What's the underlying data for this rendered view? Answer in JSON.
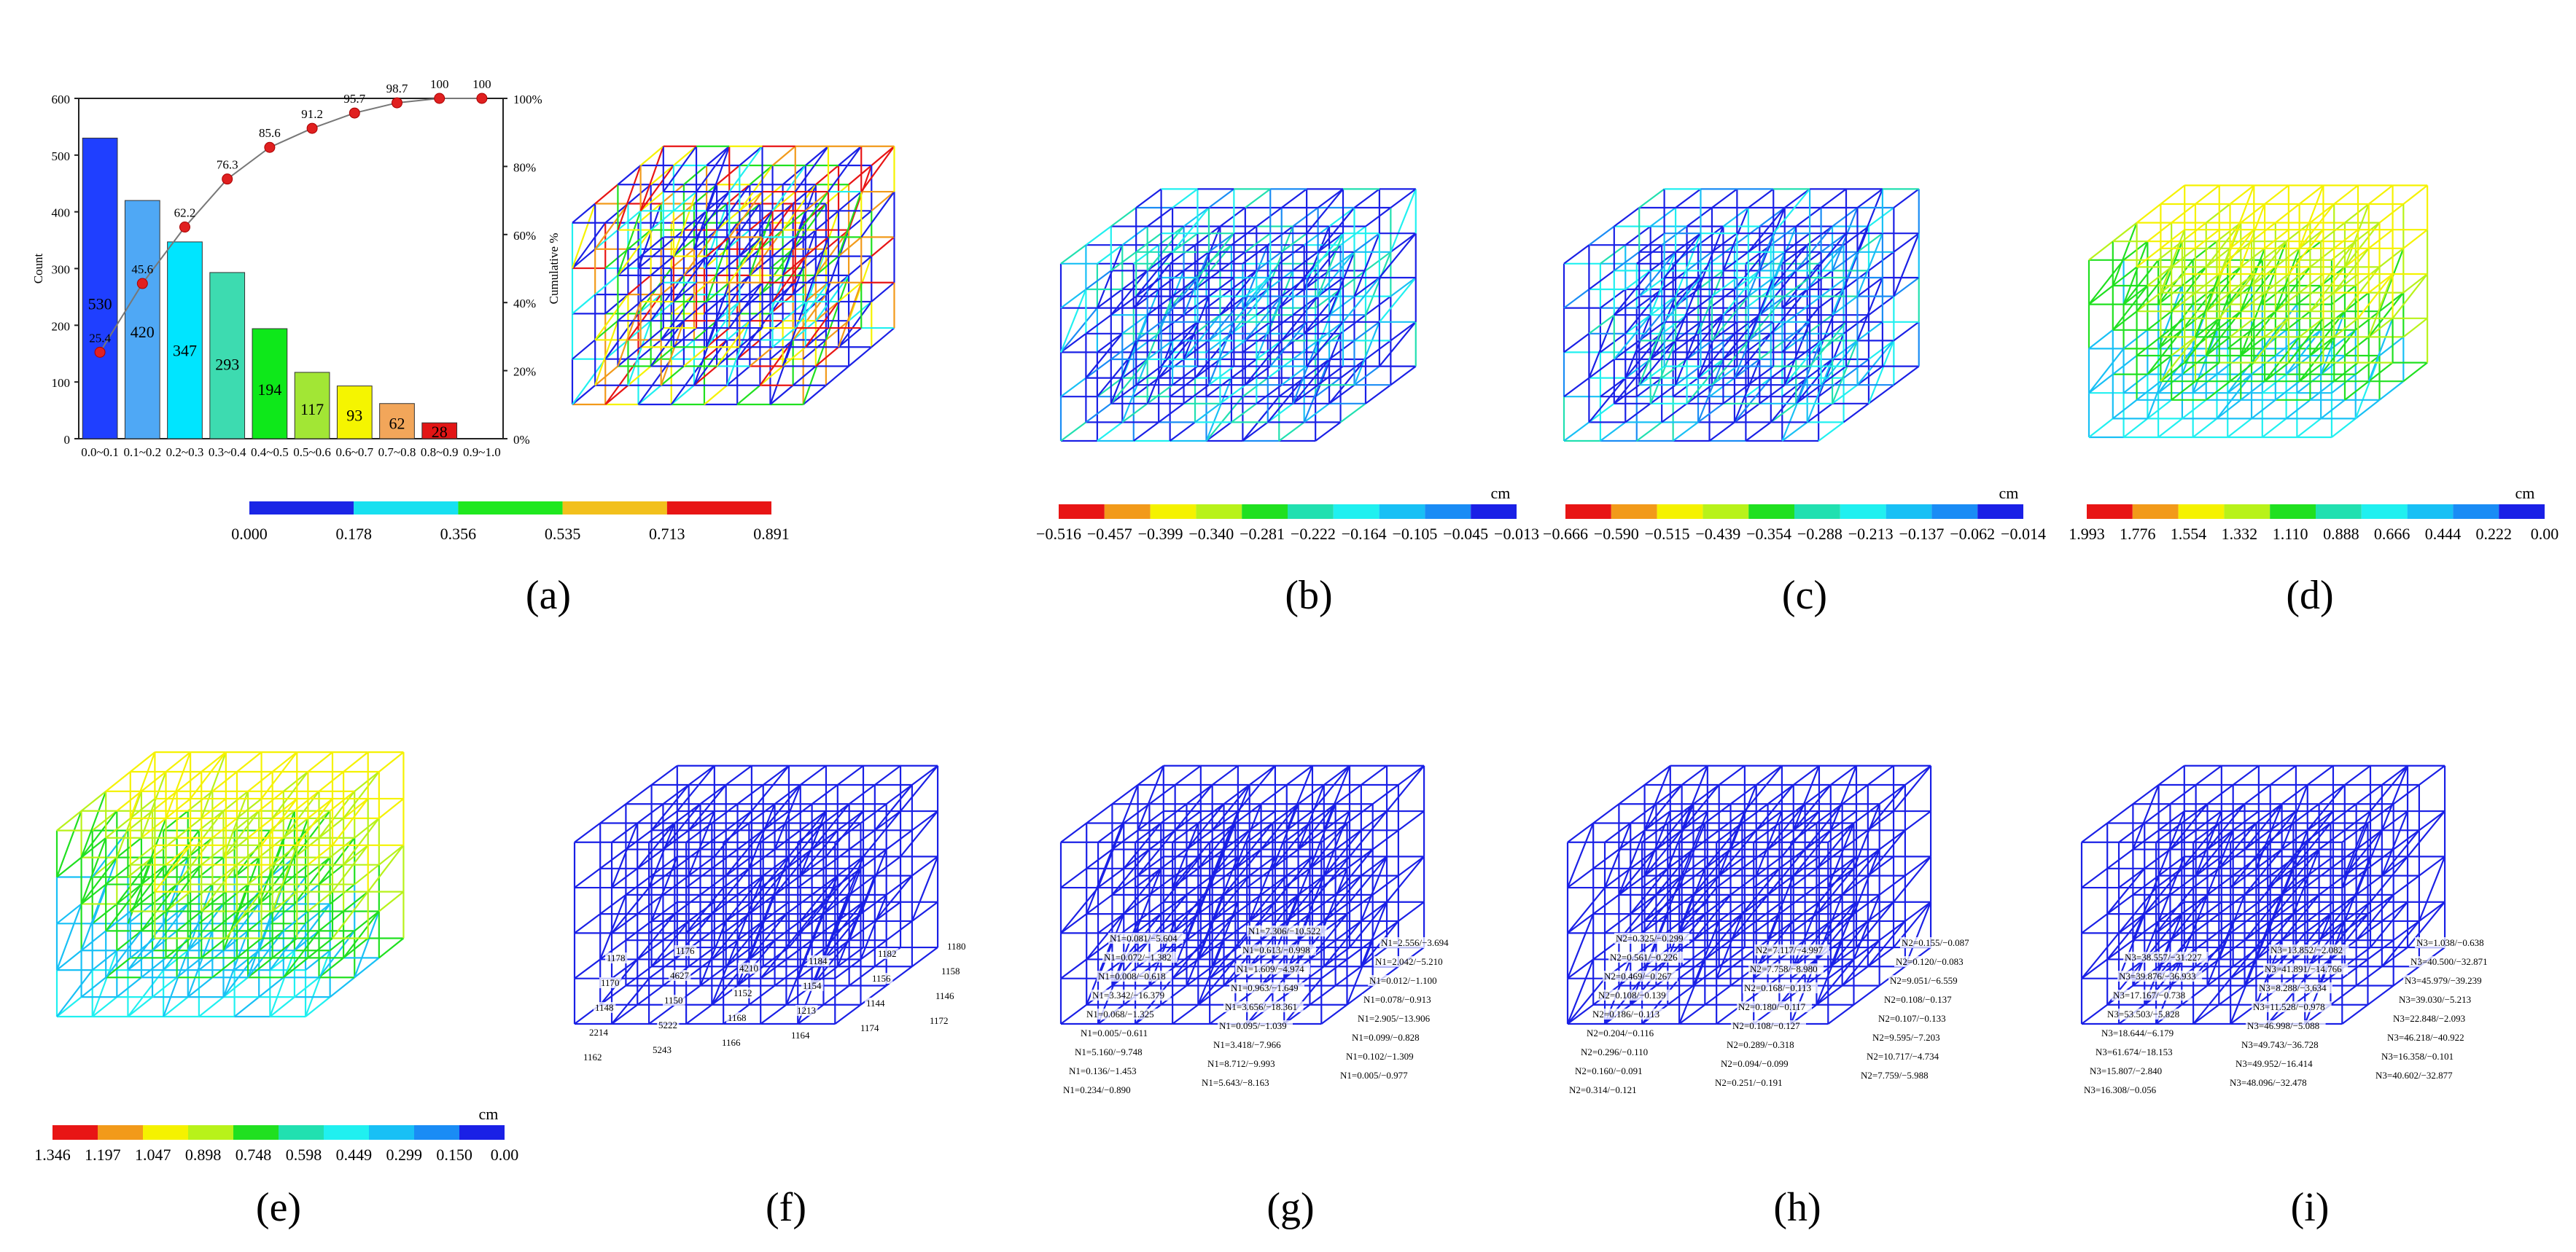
{
  "panels": [
    {
      "id": "a",
      "caption": "(a)"
    },
    {
      "id": "b",
      "caption": "(b)"
    },
    {
      "id": "c",
      "caption": "(c)"
    },
    {
      "id": "d",
      "caption": "(d)"
    },
    {
      "id": "e",
      "caption": "(e)"
    },
    {
      "id": "f",
      "caption": "(f)"
    },
    {
      "id": "g",
      "caption": "(g)"
    },
    {
      "id": "h",
      "caption": "(h)"
    },
    {
      "id": "i",
      "caption": "(i)"
    }
  ],
  "chart_data": {
    "type": "bar",
    "categories": [
      "0.0~0.1",
      "0.1~0.2",
      "0.2~0.3",
      "0.3~0.4",
      "0.4~0.5",
      "0.5~0.6",
      "0.6~0.7",
      "0.7~0.8",
      "0.8~0.9",
      "0.9~1.0"
    ],
    "values": [
      530,
      420,
      347,
      293,
      194,
      117,
      93,
      62,
      28,
      0
    ],
    "cumulative_percent": [
      25.4,
      45.6,
      62.2,
      76.3,
      85.6,
      91.2,
      95.7,
      98.7,
      100,
      100
    ],
    "ylabel": "Count",
    "y2label": "Cumulative %",
    "ylim": [
      0,
      600
    ],
    "yticks": [
      "0",
      "100",
      "200",
      "300",
      "400",
      "500",
      "600"
    ],
    "y2lim": [
      0,
      100
    ],
    "y2ticks": [
      "0%",
      "20%",
      "40%",
      "60%",
      "80%",
      "100%"
    ],
    "bar_colors": [
      "#1f3fff",
      "#4fa8f5",
      "#00e5ff",
      "#3ddbb0",
      "#0ee81a",
      "#a2e635",
      "#f5f500",
      "#f2a65a",
      "#e21515",
      "#a0a0a0"
    ]
  },
  "scales": {
    "a": {
      "colors": [
        "#1a25e6",
        "#17e0f0",
        "#1ee81e",
        "#f2c01c",
        "#e81515"
      ],
      "labels": [
        "0.000",
        "0.178",
        "0.356",
        "0.535",
        "0.713",
        "0.891"
      ]
    },
    "b": {
      "unit": "cm",
      "colors": [
        "#e81515",
        "#f29a1a",
        "#f5f200",
        "#b8f21a",
        "#20e020",
        "#21e0b0",
        "#20f0f0",
        "#18c0f5",
        "#1a8cf5",
        "#1a20e6"
      ],
      "labels": [
        "−0.516",
        "−0.457",
        "−0.399",
        "−0.340",
        "−0.281",
        "−0.222",
        "−0.164",
        "−0.105",
        "−0.045",
        "−0.013"
      ]
    },
    "c": {
      "unit": "cm",
      "colors": [
        "#e81515",
        "#f29a1a",
        "#f5f200",
        "#b8f21a",
        "#20e020",
        "#21e0b0",
        "#20f0f0",
        "#18c0f5",
        "#1a8cf5",
        "#1a20e6"
      ],
      "labels": [
        "−0.666",
        "−0.590",
        "−0.515",
        "−0.439",
        "−0.354",
        "−0.288",
        "−0.213",
        "−0.137",
        "−0.062",
        "−0.014"
      ]
    },
    "d": {
      "unit": "cm",
      "colors": [
        "#e81515",
        "#f29a1a",
        "#f5f200",
        "#b8f21a",
        "#20e020",
        "#21e0b0",
        "#20f0f0",
        "#18c0f5",
        "#1a8cf5",
        "#1a20e6"
      ],
      "labels": [
        "1.993",
        "1.776",
        "1.554",
        "1.332",
        "1.110",
        "0.888",
        "0.666",
        "0.444",
        "0.222",
        "0.00"
      ]
    },
    "e": {
      "unit": "cm",
      "colors": [
        "#e81515",
        "#f29a1a",
        "#f5f200",
        "#b8f21a",
        "#20e020",
        "#21e0b0",
        "#20f0f0",
        "#18c0f5",
        "#1a8cf5",
        "#1a20e6"
      ],
      "labels": [
        "1.346",
        "1.197",
        "1.047",
        "0.898",
        "0.748",
        "0.598",
        "0.449",
        "0.299",
        "0.150",
        "0.00"
      ]
    }
  },
  "annotations": {
    "f": [
      "1162",
      "5243",
      "1166",
      "1164",
      "1174",
      "1172",
      "2214",
      "5222",
      "1168",
      "1213",
      "1144",
      "1146",
      "1148",
      "1150",
      "1152",
      "1154",
      "1156",
      "1158",
      "1170",
      "4627",
      "4210",
      "1184",
      "1182",
      "1180",
      "1178",
      "1176"
    ],
    "g": [
      "N1=0.234/−0.890",
      "N1=5.643/−8.163",
      "N1=0.005/−0.977",
      "N1=0.136/−1.453",
      "N1=8.712/−9.993",
      "N1=0.102/−1.309",
      "N1=5.160/−9.748",
      "N1=3.418/−7.966",
      "N1=0.099/−0.828",
      "N1=0.005/−0.611",
      "N1=0.095/−1.039",
      "N1=2.905/−13.906",
      "N1=0.068/−1.325",
      "N1=3.656/−18.361",
      "N1=0.078/−0.913",
      "N1=3.342/−16.379",
      "N1=0.963/−1.649",
      "N1=0.012/−1.100",
      "N1=0.008/−0.618",
      "N1=1.609/−4.974",
      "N1=2.042/−5.210",
      "N1=0.072/−1.382",
      "N1=0.613/−0.998",
      "N1=2.556/−3.694",
      "N1=0.081/−5.604",
      "N1=7.306/−10.522"
    ],
    "h": [
      "N2=0.314/−0.121",
      "N2=0.251/−0.191",
      "N2=7.759/−5.988",
      "N2=0.160/−0.091",
      "N2=0.094/−0.099",
      "N2=10.717/−4.734",
      "N2=0.296/−0.110",
      "N2=0.289/−0.318",
      "N2=9.595/−7.203",
      "N2=0.204/−0.116",
      "N2=0.108/−0.127",
      "N2=0.107/−0.133",
      "N2=0.186/−0.113",
      "N2=0.180/−0.117",
      "N2=0.108/−0.137",
      "N2=0.108/−0.139",
      "N2=0.168/−0.113",
      "N2=9.051/−6.559",
      "N2=0.469/−0.267",
      "N2=7.758/−8.980",
      "N2=0.120/−0.083",
      "N2=0.561/−0.226",
      "N2=7.117/−4.997",
      "N2=0.155/−0.087",
      "N2=0.325/−0.299"
    ],
    "i": [
      "N3=16.308/−0.056",
      "N3=48.096/−32.478",
      "N3=40.602/−32.877",
      "N3=15.807/−2.840",
      "N3=49.952/−16.414",
      "N3=16.358/−0.101",
      "N3=61.674/−18.153",
      "N3=49.743/−36.728",
      "N3=46.218/−40.922",
      "N3=18.644/−6.179",
      "N3=46.998/−5.088",
      "N3=22.848/−2.093",
      "N3=53.503/−5.828",
      "N3=11.528/−0.978",
      "N3=39.030/−5.213",
      "N3=17.167/−0.738",
      "N3=8.288/−3.634",
      "N3=45.979/−39.239",
      "N3=39.876/−36.933",
      "N3=41.891/−14.766",
      "N3=40.500/−32.871",
      "N3=38.557/−31.227",
      "N3=13.852/−2.082",
      "N3=1.038/−0.638"
    ]
  }
}
